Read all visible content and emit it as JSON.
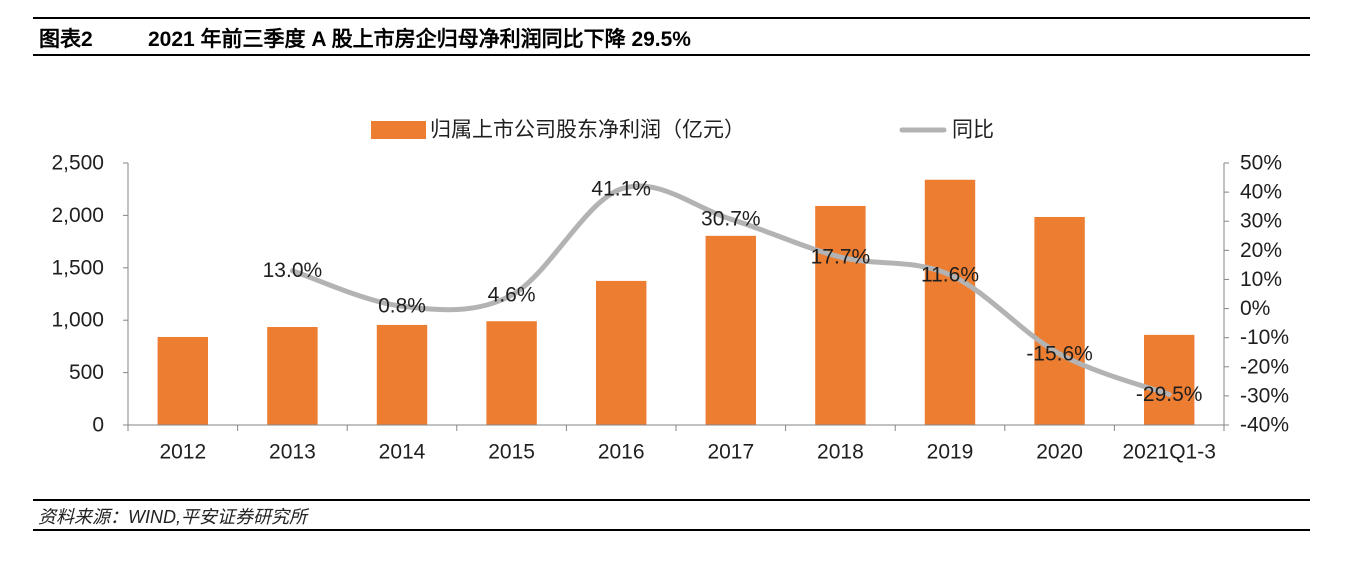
{
  "header": {
    "figure_label": "图表2",
    "title": "2021 年前三季度 A 股上市房企归母净利润同比下降 29.5%"
  },
  "chart_data": {
    "type": "bar",
    "categories": [
      "2012",
      "2013",
      "2014",
      "2015",
      "2016",
      "2017",
      "2018",
      "2019",
      "2020",
      "2021Q1-3"
    ],
    "series": [
      {
        "name": "归属上市公司股东净利润（亿元）",
        "type": "bar",
        "axis": "left",
        "color": "#ED7D31",
        "values": [
          840,
          935,
          955,
          990,
          1375,
          1805,
          2090,
          2340,
          1985,
          860
        ]
      },
      {
        "name": "同比",
        "type": "line",
        "axis": "right",
        "smooth": true,
        "color": "#B3B3B3",
        "values": [
          null,
          13.0,
          0.8,
          4.6,
          41.1,
          30.7,
          17.7,
          11.6,
          -15.6,
          -29.5
        ],
        "data_labels": [
          null,
          "13.0%",
          "0.8%",
          "4.6%",
          "41.1%",
          "30.7%",
          "17.7%",
          "11.6%",
          "-15.6%",
          "-29.5%"
        ]
      }
    ],
    "y_left": {
      "range": [
        0,
        2500
      ],
      "ticks": [
        0,
        500,
        1000,
        1500,
        2000,
        2500
      ],
      "tick_labels": [
        "0",
        "500",
        "1,000",
        "1,500",
        "2,000",
        "2,500"
      ]
    },
    "y_right": {
      "range": [
        -40,
        50
      ],
      "ticks": [
        -40,
        -30,
        -20,
        -10,
        0,
        10,
        20,
        30,
        40,
        50
      ],
      "tick_labels": [
        "-40%",
        "-30%",
        "-20%",
        "-10%",
        "0%",
        "10%",
        "20%",
        "30%",
        "40%",
        "50%"
      ]
    },
    "legend": "top",
    "grid": false
  },
  "footer": {
    "source": "资料来源：WIND,平安证券研究所"
  }
}
